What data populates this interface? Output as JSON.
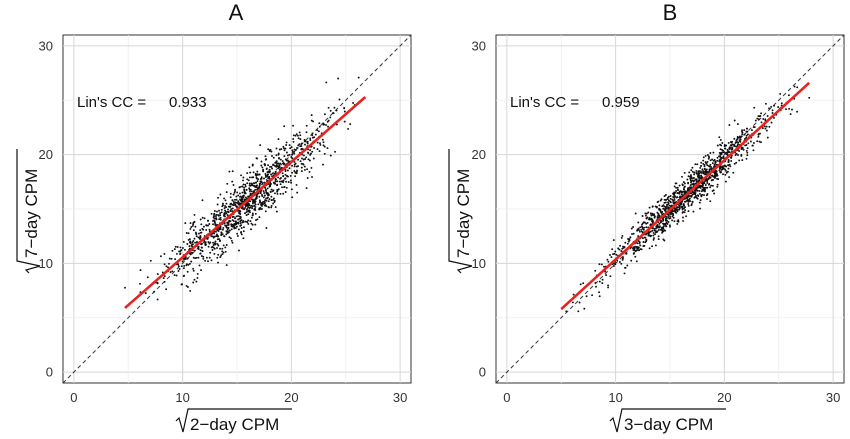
{
  "chart_data": [
    {
      "type": "scatter",
      "panel_label": "A",
      "xlabel_radicand": "2−day CPM",
      "ylabel_radicand": "7−day CPM",
      "xlim": [
        -1,
        31
      ],
      "ylim": [
        -1,
        31
      ],
      "xticks": [
        "0",
        "10",
        "20",
        "30"
      ],
      "yticks": [
        "0",
        "10",
        "20",
        "30"
      ],
      "grid": true,
      "annotation": {
        "label": "Lin's CC =",
        "value": "0.933"
      },
      "identity_line": {
        "x": [
          -1,
          31
        ],
        "y": [
          -1,
          31
        ],
        "style": "dashed",
        "color": "#333333"
      },
      "fit_line": {
        "x": [
          4.7,
          26.8
        ],
        "y": [
          5.9,
          25.3
        ],
        "color": "#e8231f"
      },
      "points": {
        "count": 1200,
        "x_range": [
          4.7,
          26.8
        ],
        "residual_sd": 1.3,
        "color": "#111111",
        "seed": 11
      }
    },
    {
      "type": "scatter",
      "panel_label": "B",
      "xlabel_radicand": "3−day CPM",
      "ylabel_radicand": "7−day CPM",
      "xlim": [
        -1,
        31
      ],
      "ylim": [
        -1,
        31
      ],
      "xticks": [
        "0",
        "10",
        "20",
        "30"
      ],
      "yticks": [
        "0",
        "10",
        "20",
        "30"
      ],
      "grid": true,
      "annotation": {
        "label": "Lin's CC =",
        "value": "0.959"
      },
      "identity_line": {
        "x": [
          -1,
          31
        ],
        "y": [
          -1,
          31
        ],
        "style": "dashed",
        "color": "#333333"
      },
      "fit_line": {
        "x": [
          5.0,
          27.8
        ],
        "y": [
          5.8,
          26.6
        ],
        "color": "#e8231f"
      },
      "points": {
        "count": 1200,
        "x_range": [
          5.0,
          27.8
        ],
        "residual_sd": 0.85,
        "color": "#111111",
        "seed": 23
      }
    }
  ]
}
